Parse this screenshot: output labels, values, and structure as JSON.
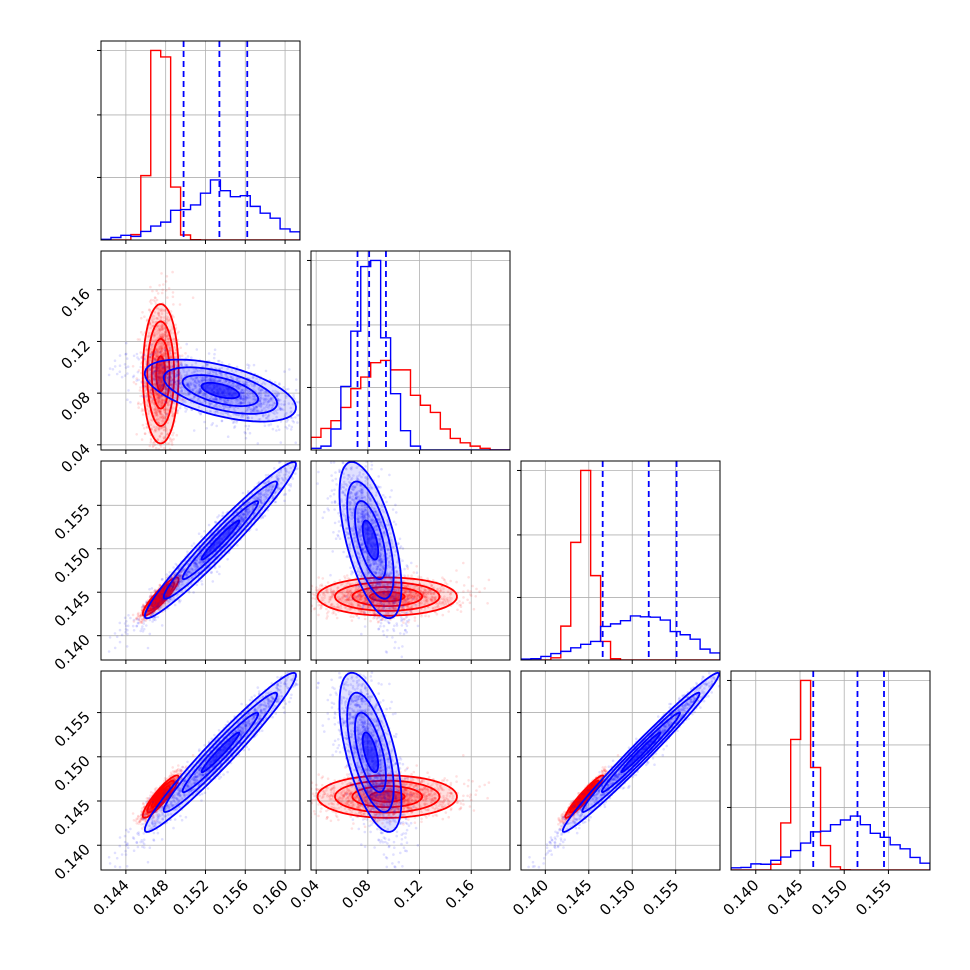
{
  "chart_data": {
    "type": "corner",
    "title": "",
    "parameters": [
      {
        "range": [
          0.1415,
          0.1615
        ],
        "ticks": [
          0.144,
          0.148,
          0.152,
          0.156,
          0.16
        ],
        "tick_labels": [
          "0.144",
          "0.148",
          "0.152",
          "0.156",
          "0.160"
        ]
      },
      {
        "range": [
          0.036,
          0.19
        ],
        "ticks": [
          0.04,
          0.08,
          0.12,
          0.16
        ],
        "tick_labels": [
          "0.04",
          "0.08",
          "0.12",
          "0.16"
        ]
      },
      {
        "range": [
          0.1372,
          0.1601
        ],
        "ticks": [
          0.14,
          0.145,
          0.15,
          0.155
        ],
        "tick_labels": [
          "0.140",
          "0.145",
          "0.150",
          "0.155"
        ]
      },
      {
        "range": [
          0.1372,
          0.1597
        ],
        "ticks": [
          0.14,
          0.145,
          0.15,
          0.155
        ],
        "tick_labels": [
          "0.140",
          "0.145",
          "0.150",
          "0.155"
        ]
      }
    ],
    "grid": true,
    "series": [
      {
        "color": "#ff0000",
        "mean": [
          0.1475,
          0.095,
          0.1445,
          0.1455
        ],
        "sd": [
          0.0009,
          0.027,
          0.0011,
          0.0012
        ],
        "corr": [
          [
            1,
            0,
            0.9,
            0.9
          ],
          [
            0,
            1,
            0,
            0
          ],
          [
            0.9,
            0,
            1,
            0.95
          ],
          [
            0.9,
            0,
            0.95,
            1
          ]
        ]
      },
      {
        "color": "#0000ff",
        "mean": [
          0.1535,
          0.082,
          0.151,
          0.1505
        ],
        "sd": [
          0.0038,
          0.012,
          0.0045,
          0.0045
        ],
        "corr": [
          [
            1,
            -0.55,
            0.97,
            0.97
          ],
          [
            -0.55,
            1,
            -0.6,
            -0.6
          ],
          [
            0.97,
            -0.6,
            1,
            0.985
          ],
          [
            0.97,
            -0.6,
            0.985,
            1
          ]
        ]
      }
    ],
    "quantile_lines": {
      "color": "#0000ff",
      "style": "dashed",
      "values": [
        [
          0.1498,
          0.1534,
          0.1562
        ],
        [
          0.072,
          0.081,
          0.094
        ],
        [
          0.1466,
          0.1519,
          0.1551
        ],
        [
          0.1465,
          0.1515,
          0.1545
        ]
      ]
    }
  }
}
